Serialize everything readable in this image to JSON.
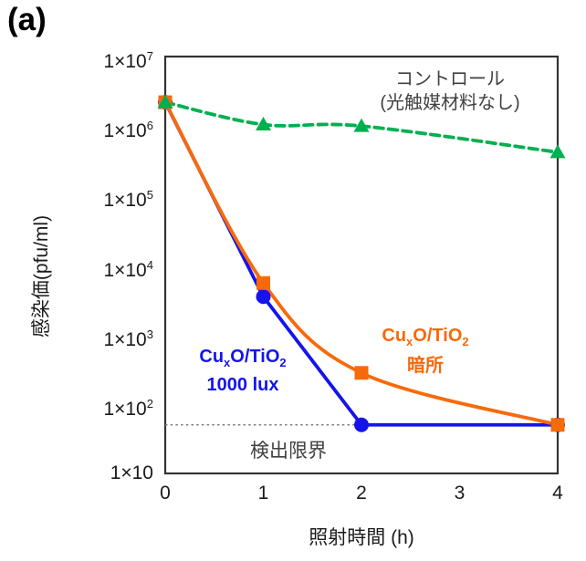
{
  "panel_label": "(a)",
  "chart_data": {
    "type": "line",
    "xlabel": "照射時間 (h)",
    "ylabel": "感染価(pfu/ml)",
    "xlim": [
      0,
      4
    ],
    "ylim": [
      10,
      10000000
    ],
    "yscale": "log",
    "grid": false,
    "legend_position": "inline-annotations",
    "x": [
      0,
      1,
      2,
      4
    ],
    "xticks": [
      "0",
      "1",
      "2",
      "3",
      "4"
    ],
    "xtick_values": [
      0,
      1,
      2,
      3,
      4
    ],
    "yticks": [
      {
        "base": "1×10",
        "exp": "7",
        "value": 10000000
      },
      {
        "base": "1×10",
        "exp": "6",
        "value": 1000000
      },
      {
        "base": "1×10",
        "exp": "5",
        "value": 100000
      },
      {
        "base": "1×10",
        "exp": "4",
        "value": 10000
      },
      {
        "base": "1×10",
        "exp": "3",
        "value": 1000
      },
      {
        "base": "1×10",
        "exp": "2",
        "value": 100
      },
      {
        "base": "1×10",
        "exp": "",
        "value": 10
      }
    ],
    "series": [
      {
        "name": "コントロール (光触媒材料なし)",
        "color": "#00B050",
        "line": "dashed",
        "smooth": true,
        "marker": "triangle",
        "values": [
          2200000,
          1050000,
          1000000,
          420000
        ]
      },
      {
        "name": "CuxO/TiO2 1000 lux",
        "color": "#1414EB",
        "line": "solid",
        "smooth": false,
        "marker": "circle",
        "values": [
          2200000,
          3500,
          50,
          50
        ]
      },
      {
        "name": "CuxO/TiO2 暗所",
        "color": "#F76A0A",
        "line": "solid",
        "smooth": true,
        "marker": "square",
        "values": [
          2200000,
          5500,
          280,
          50
        ]
      }
    ],
    "marker_draw_order": [
      1,
      2,
      0
    ],
    "detection_limit": {
      "value": 50,
      "label": "検出限界",
      "color": "#7F7F7F"
    },
    "frame_color": "#333333"
  },
  "annotations": {
    "control_label": {
      "line1": "コントロール",
      "line2": "(光触媒材料なし)",
      "color": "#404040"
    },
    "blue_label": {
      "pre": "Cu",
      "sub_x": "x",
      "mid": "O/TiO",
      "sub_2": "2",
      "line2": "1000 lux"
    },
    "orange_label": {
      "pre": "Cu",
      "sub_x": "x",
      "mid": "O/TiO",
      "sub_2": "2",
      "line2": "暗所"
    },
    "detection_limit_label": "検出限界"
  }
}
